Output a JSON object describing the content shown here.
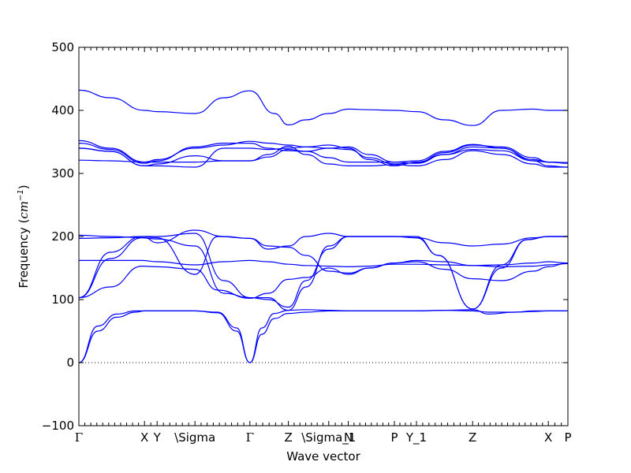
{
  "chart_data": {
    "type": "line",
    "title": "",
    "xlabel": "Wave vector",
    "ylabel_main": "Frequency (",
    "ylabel_unit": "cm",
    "ylabel_exp": "−1",
    "ylabel_close": ")",
    "ylim": [
      -100,
      500
    ],
    "yticks": [
      -100,
      0,
      100,
      200,
      300,
      400,
      500
    ],
    "xlim": [
      0,
      7.75
    ],
    "xticks": [
      {
        "x": 0.0,
        "label": "Γ",
        "serif": true
      },
      {
        "x": 1.04,
        "label": "X",
        "serif": false
      },
      {
        "x": 1.24,
        "label": "Y",
        "serif": false
      },
      {
        "x": 1.84,
        "label": "\\Sigma",
        "serif": false
      },
      {
        "x": 2.71,
        "label": "Γ",
        "serif": true
      },
      {
        "x": 3.32,
        "label": "Z",
        "serif": false
      },
      {
        "x": 3.96,
        "label": "\\Sigma_1",
        "serif": false
      },
      {
        "x": 4.27,
        "label": "N",
        "serif": false
      },
      {
        "x": 5.0,
        "label": "P",
        "serif": false
      },
      {
        "x": 5.35,
        "label": "Y_1",
        "serif": false
      },
      {
        "x": 6.24,
        "label": "Z",
        "serif": false
      },
      {
        "x": 7.44,
        "label": "X",
        "serif": false
      },
      {
        "x": 7.75,
        "label": "P",
        "serif": false
      }
    ],
    "zero_line": {
      "y": 0,
      "style": "dotted"
    },
    "grid": false,
    "series_color": "#0000ff",
    "series": [
      {
        "x": [
          0,
          0.3,
          0.6,
          0.9,
          1.04,
          1.24,
          1.84,
          2.2,
          2.5,
          2.71,
          2.9,
          3.1,
          3.32,
          3.6,
          3.96,
          4.27,
          5.0,
          5.35,
          5.8,
          6.24,
          6.5,
          6.9,
          7.2,
          7.44,
          7.75
        ],
        "y": [
          0,
          50,
          72,
          80,
          82,
          82,
          82,
          79,
          50,
          0,
          45,
          70,
          78,
          80,
          82,
          82,
          82,
          82,
          83,
          82,
          80,
          80,
          81,
          82,
          82
        ]
      },
      {
        "x": [
          0,
          0.3,
          0.6,
          0.9,
          1.04,
          1.24,
          1.84,
          2.2,
          2.5,
          2.71,
          2.9,
          3.1,
          3.32,
          3.6,
          3.96,
          4.27,
          5.0,
          5.35,
          5.8,
          6.24,
          6.5,
          6.9,
          7.2,
          7.44,
          7.75
        ],
        "y": [
          0,
          58,
          77,
          82,
          82,
          82,
          82,
          80,
          55,
          0,
          55,
          78,
          83,
          84,
          83,
          82,
          82,
          82,
          83,
          84,
          77,
          80,
          82,
          82,
          82
        ]
      },
      {
        "x": [
          0,
          0.5,
          1.0,
          1.24,
          1.84,
          2.3,
          2.71,
          3.0,
          3.32,
          3.6,
          3.96,
          4.27,
          4.6,
          5.0,
          5.35,
          5.7,
          6.24,
          6.7,
          7.1,
          7.44,
          7.75
        ],
        "y": [
          103,
          165,
          198,
          196,
          185,
          110,
          103,
          103,
          83,
          120,
          185,
          200,
          200,
          200,
          200,
          170,
          85,
          150,
          195,
          200,
          200
        ]
      },
      {
        "x": [
          0,
          0.5,
          1.0,
          1.24,
          1.84,
          2.3,
          2.71,
          3.0,
          3.32,
          3.6,
          3.96,
          4.27,
          4.6,
          5.0,
          5.35,
          5.7,
          6.24,
          6.7,
          7.1,
          7.44,
          7.75
        ],
        "y": [
          103,
          175,
          200,
          200,
          205,
          130,
          103,
          100,
          88,
          130,
          180,
          200,
          200,
          200,
          198,
          170,
          85,
          155,
          195,
          200,
          200
        ]
      },
      {
        "x": [
          0,
          0.5,
          1.0,
          1.24,
          1.84,
          2.2,
          2.71,
          3.0,
          3.32,
          3.6,
          3.96,
          4.27,
          4.6,
          5.0,
          5.35,
          5.8,
          6.24,
          6.7,
          7.2,
          7.44,
          7.75
        ],
        "y": [
          103,
          120,
          153,
          152,
          148,
          115,
          102,
          110,
          132,
          135,
          150,
          140,
          150,
          158,
          160,
          148,
          133,
          130,
          145,
          152,
          158
        ]
      },
      {
        "x": [
          0,
          0.5,
          1.0,
          1.24,
          1.84,
          2.2,
          2.71,
          3.0,
          3.32,
          3.6,
          3.96,
          4.27,
          4.6,
          5.0,
          5.35,
          5.8,
          6.24,
          6.7,
          7.2,
          7.44,
          7.75
        ],
        "y": [
          197,
          198,
          200,
          198,
          140,
          200,
          197,
          180,
          185,
          200,
          205,
          200,
          200,
          200,
          198,
          190,
          185,
          188,
          198,
          200,
          200
        ]
      },
      {
        "x": [
          0,
          0.5,
          1.0,
          1.24,
          1.84,
          2.3,
          2.71,
          3.0,
          3.32,
          3.6,
          3.96,
          4.27,
          4.6,
          5.0,
          5.35,
          5.8,
          6.24,
          6.7,
          7.2,
          7.44,
          7.75
        ],
        "y": [
          162,
          162,
          162,
          160,
          155,
          160,
          162,
          160,
          156,
          154,
          153,
          152,
          153,
          156,
          156,
          155,
          154,
          155,
          158,
          160,
          158
        ]
      },
      {
        "x": [
          0,
          0.5,
          1.04,
          1.24,
          1.84,
          2.3,
          2.71,
          3.0,
          3.32,
          3.6,
          3.96,
          4.27,
          4.6,
          5.0,
          5.35,
          5.8,
          6.24,
          6.7,
          7.2,
          7.44,
          7.75
        ],
        "y": [
          202,
          200,
          198,
          190,
          210,
          200,
          197,
          185,
          183,
          170,
          145,
          142,
          150,
          158,
          162,
          160,
          154,
          152,
          153,
          155,
          157
        ]
      },
      {
        "x": [
          0,
          0.5,
          1.04,
          1.24,
          1.84,
          2.3,
          2.71,
          3.1,
          3.32,
          3.6,
          3.96,
          4.27,
          4.6,
          5.0,
          5.35,
          5.8,
          6.24,
          6.7,
          7.2,
          7.44,
          7.75
        ],
        "y": [
          432,
          420,
          400,
          398,
          395,
          420,
          431,
          395,
          377,
          385,
          395,
          402,
          401,
          400,
          398,
          385,
          376,
          400,
          402,
          400,
          400
        ]
      },
      {
        "x": [
          0,
          0.5,
          1.04,
          1.24,
          1.84,
          2.3,
          2.71,
          3.0,
          3.32,
          3.6,
          3.96,
          4.27,
          4.6,
          5.0,
          5.35,
          5.8,
          6.24,
          6.7,
          7.2,
          7.44,
          7.75
        ],
        "y": [
          352,
          340,
          318,
          322,
          340,
          345,
          351,
          348,
          345,
          342,
          340,
          342,
          330,
          318,
          320,
          335,
          346,
          340,
          322,
          318,
          317
        ]
      },
      {
        "x": [
          0,
          0.5,
          1.04,
          1.24,
          1.84,
          2.3,
          2.71,
          3.0,
          3.32,
          3.6,
          3.96,
          4.27,
          4.6,
          5.0,
          5.35,
          5.8,
          6.24,
          6.7,
          7.2,
          7.44,
          7.75
        ],
        "y": [
          348,
          338,
          316,
          320,
          342,
          348,
          348,
          340,
          336,
          335,
          340,
          338,
          325,
          315,
          317,
          333,
          345,
          342,
          325,
          318,
          316
        ]
      },
      {
        "x": [
          0,
          0.5,
          1.04,
          1.24,
          1.84,
          2.3,
          2.71,
          3.0,
          3.32,
          3.6,
          3.96,
          4.27,
          4.6,
          5.0,
          5.35,
          5.8,
          6.24,
          6.7,
          7.2,
          7.44,
          7.75
        ],
        "y": [
          340,
          335,
          312,
          312,
          310,
          340,
          340,
          338,
          340,
          342,
          345,
          340,
          322,
          312,
          318,
          330,
          342,
          340,
          320,
          312,
          310
        ]
      },
      {
        "x": [
          0,
          0.5,
          1.04,
          1.24,
          1.84,
          2.3,
          2.71,
          3.0,
          3.32,
          3.6,
          3.96,
          4.27,
          4.6,
          5.0,
          5.35,
          5.8,
          6.24,
          6.7,
          7.2,
          7.44,
          7.75
        ],
        "y": [
          340,
          335,
          312,
          315,
          328,
          320,
          320,
          330,
          343,
          330,
          315,
          312,
          312,
          314,
          312,
          322,
          336,
          330,
          315,
          310,
          310
        ]
      },
      {
        "x": [
          0,
          0.5,
          1.04,
          1.24,
          1.84,
          2.3,
          2.71,
          3.0,
          3.32,
          3.6,
          3.96,
          4.27,
          4.6,
          5.0,
          5.35,
          5.8,
          6.24,
          6.7,
          7.2,
          7.44,
          7.75
        ],
        "y": [
          321,
          320,
          318,
          318,
          318,
          320,
          320,
          326,
          338,
          335,
          325,
          318,
          318,
          318,
          316,
          330,
          338,
          336,
          320,
          318,
          317
        ]
      }
    ]
  }
}
